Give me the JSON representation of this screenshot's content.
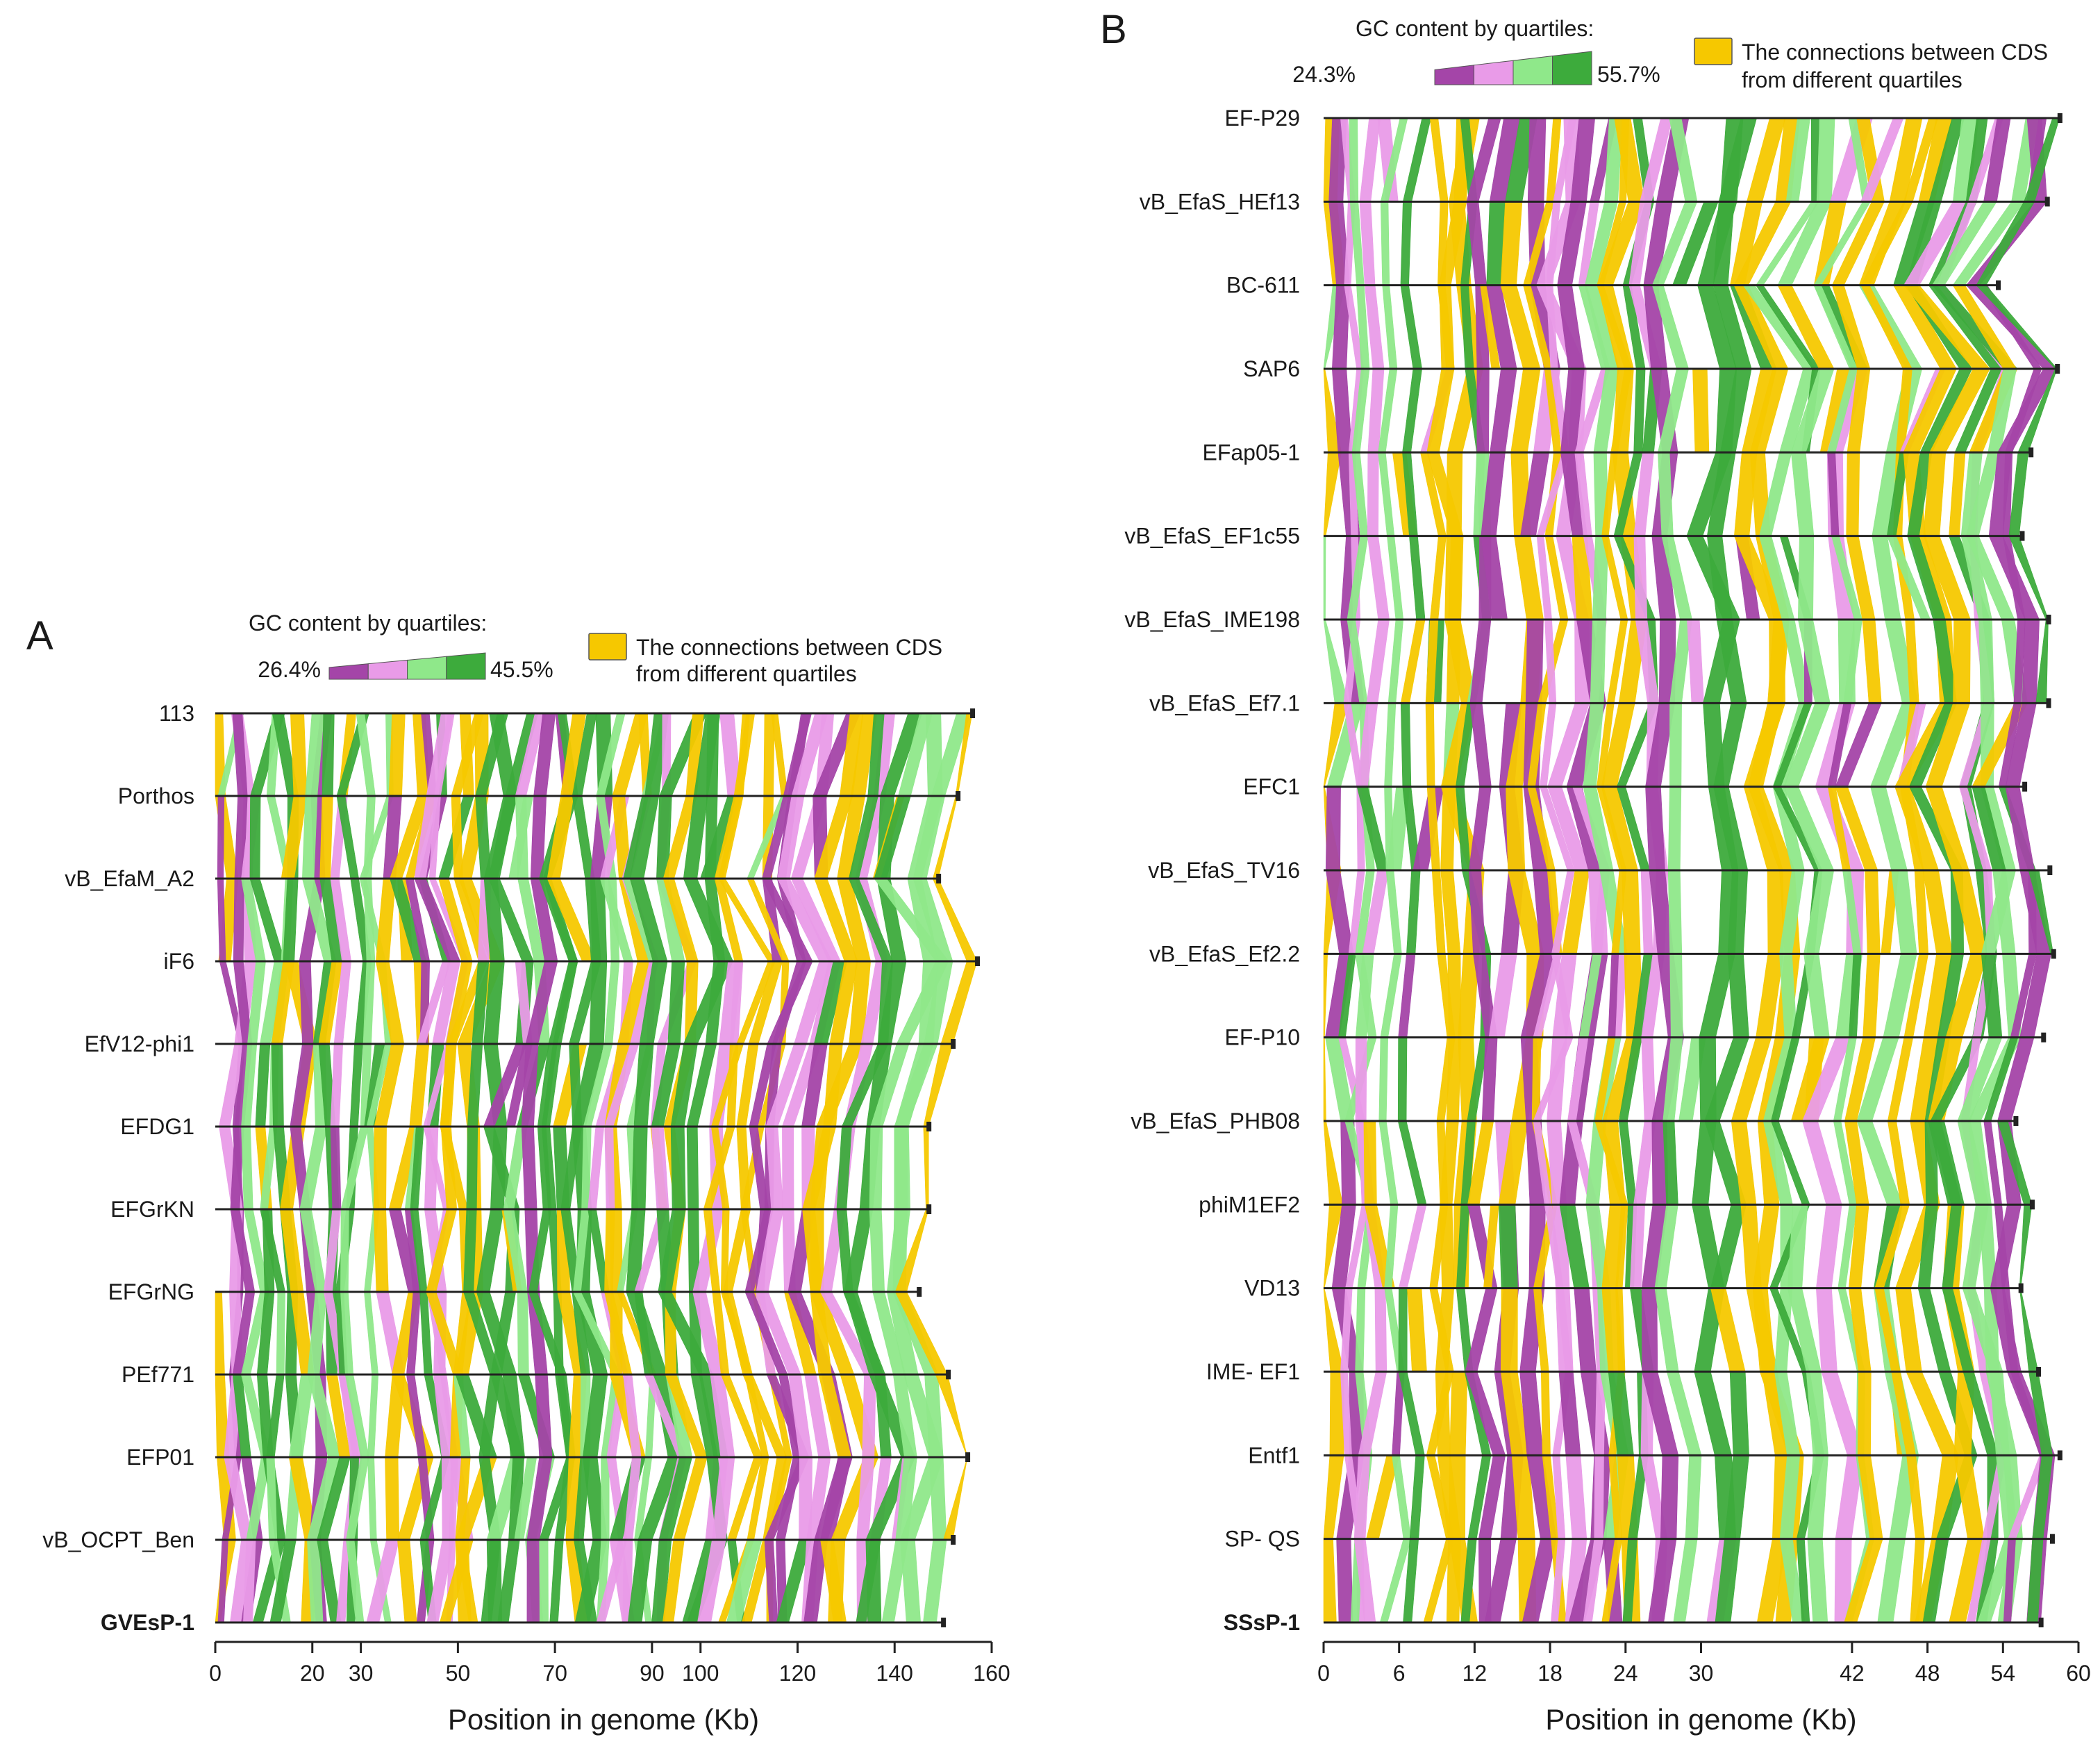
{
  "palette": {
    "q1": "#a445a8",
    "q2": "#e99be8",
    "q3": "#8fe88a",
    "q4": "#3dab3c",
    "connection": "#f6c800",
    "axis": "#222222"
  },
  "chart_data": [
    {
      "type": "genome_comparison",
      "panel": "A",
      "legend_title": "GC content by quartiles:",
      "gc_min": "26.4%",
      "gc_max": "45.5%",
      "connection_label_line1": "The connections between CDS",
      "connection_label_line2": "from different quartiles",
      "xlabel": "Position in genome (Kb)",
      "xlim": [
        0,
        160
      ],
      "ticks": [
        0,
        20,
        30,
        50,
        70,
        90,
        100,
        120,
        140,
        160
      ],
      "genomes": [
        {
          "name": "113",
          "length_kb": 156,
          "bold": false
        },
        {
          "name": "Porthos",
          "length_kb": 153,
          "bold": false
        },
        {
          "name": "vB_EfaM_A2",
          "length_kb": 149,
          "bold": false
        },
        {
          "name": "iF6",
          "length_kb": 157,
          "bold": false
        },
        {
          "name": "EfV12-phi1",
          "length_kb": 152,
          "bold": false
        },
        {
          "name": "EFDG1",
          "length_kb": 147,
          "bold": false
        },
        {
          "name": "EFGrKN",
          "length_kb": 147,
          "bold": false
        },
        {
          "name": "EFGrNG",
          "length_kb": 145,
          "bold": false
        },
        {
          "name": "PEf771",
          "length_kb": 151,
          "bold": false
        },
        {
          "name": "EFP01",
          "length_kb": 155,
          "bold": false
        },
        {
          "name": "vB_OCPT_Ben",
          "length_kb": 152,
          "bold": false
        },
        {
          "name": "GVEsP-1",
          "length_kb": 150,
          "bold": true
        }
      ]
    },
    {
      "type": "genome_comparison",
      "panel": "B",
      "legend_title": "GC content by quartiles:",
      "gc_min": "24.3%",
      "gc_max": "55.7%",
      "connection_label_line1": "The connections between CDS",
      "connection_label_line2": "from different quartiles",
      "xlabel": "Position in genome (Kb)",
      "xlim": [
        0,
        60
      ],
      "ticks": [
        0,
        6,
        12,
        18,
        24,
        30,
        42,
        48,
        54,
        60
      ],
      "genomes": [
        {
          "name": "EF-P29",
          "length_kb": 58.5,
          "bold": false
        },
        {
          "name": "vB_EfaS_HEf13",
          "length_kb": 57.5,
          "bold": false
        },
        {
          "name": "BC-611",
          "length_kb": 53.6,
          "bold": false
        },
        {
          "name": "SAP6",
          "length_kb": 58.3,
          "bold": false
        },
        {
          "name": "EFap05-1",
          "length_kb": 56.2,
          "bold": false
        },
        {
          "name": "vB_EfaS_EF1c55",
          "length_kb": 55.5,
          "bold": false
        },
        {
          "name": "vB_EfaS_IME198",
          "length_kb": 57.6,
          "bold": false
        },
        {
          "name": "vB_EfaS_Ef7.1",
          "length_kb": 57.6,
          "bold": false
        },
        {
          "name": "EFC1",
          "length_kb": 55.7,
          "bold": false
        },
        {
          "name": "vB_EfaS_TV16",
          "length_kb": 57.7,
          "bold": false
        },
        {
          "name": "vB_EfaS_Ef2.2",
          "length_kb": 58.0,
          "bold": false
        },
        {
          "name": "EF-P10",
          "length_kb": 57.2,
          "bold": false
        },
        {
          "name": "vB_EfaS_PHB08",
          "length_kb": 55.0,
          "bold": false
        },
        {
          "name": "phiM1EF2",
          "length_kb": 56.3,
          "bold": false
        },
        {
          "name": "VD13",
          "length_kb": 55.4,
          "bold": false
        },
        {
          "name": "IME- EF1",
          "length_kb": 56.8,
          "bold": false
        },
        {
          "name": "Entf1",
          "length_kb": 58.5,
          "bold": false
        },
        {
          "name": "SP- QS",
          "length_kb": 57.9,
          "bold": false
        },
        {
          "name": "SSsP-1",
          "length_kb": 57.0,
          "bold": true
        }
      ]
    }
  ],
  "panels": [
    {
      "letter": "A"
    },
    {
      "letter": "B"
    }
  ]
}
